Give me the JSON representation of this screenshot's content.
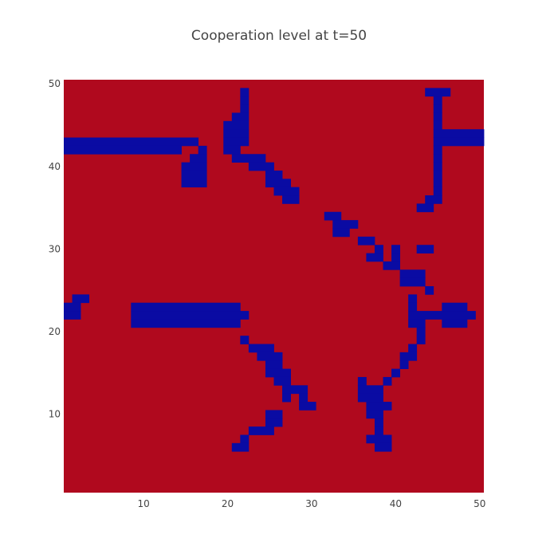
{
  "chart_data": {
    "type": "heatmap",
    "title": "Cooperation level at t=50",
    "xlabel": "",
    "ylabel": "",
    "grid": false,
    "legend": "none",
    "xlim": [
      0.5,
      50.5
    ],
    "ylim": [
      0.5,
      50.5
    ],
    "xticks": [
      10,
      20,
      30,
      40,
      50
    ],
    "yticks": [
      10,
      20,
      30,
      40,
      50
    ],
    "xtick_labels": [
      "10",
      "20",
      "30",
      "40",
      "50"
    ],
    "ytick_labels": [
      "10",
      "20",
      "30",
      "40",
      "50"
    ],
    "value_colors": {
      "0": "#b0091e",
      "1": "#0a0ba3"
    },
    "rows_top_to_bottom": [
      "..................................................",
      ".....................#.....................###....",
      ".....................#......................#.....",
      ".....................#......................#.....",
      "....................##......................#.....",
      "...................###......................#.....",
      "...................###......................######",
      "################...###......................######",
      "##############..#..##.......................#.....",
      "...............##...####....................#.....",
      "..............###.....###...................#.....",
      "..............###.......##..................#.....",
      "..............###.......###.................#.....",
      ".........................###................#.....",
      "..........................##...............##.....",
      "..........................................##.....",
      "...............................##................",
      "................................###..............",
      "................................##...............",
      "...................................##............",
      ".....................................#.#..##.....",
      "....................................##.#.........",
      "......................................##.........",
      "........................................###......",
      "........................................###......",
      "...........................................#.....",
      ".##......................................#.......",
      "##......#############....................#...###.",
      "##......##############...................########",
      "........#############....................##..###.",
      "..........................................#.......",
      ".....................#....................#.......",
      "......................###................#........",
      ".......................###..............##........",
      "........................##..............#.........",
      "........................###............#..........",
      ".........................##........#..#...........",
      "..........................###......###............",
      "..........................#.#......###............",
      "............................##......###...........",
      "........................##..........##............",
      "........................##...........#............",
      "......................###............#............",
      ".....................#..............###...........",
      "....................##...............##...........",
      "..................................................",
      "..................................................",
      "..................................................",
      "..................................................",
      ".................................................."
    ]
  }
}
